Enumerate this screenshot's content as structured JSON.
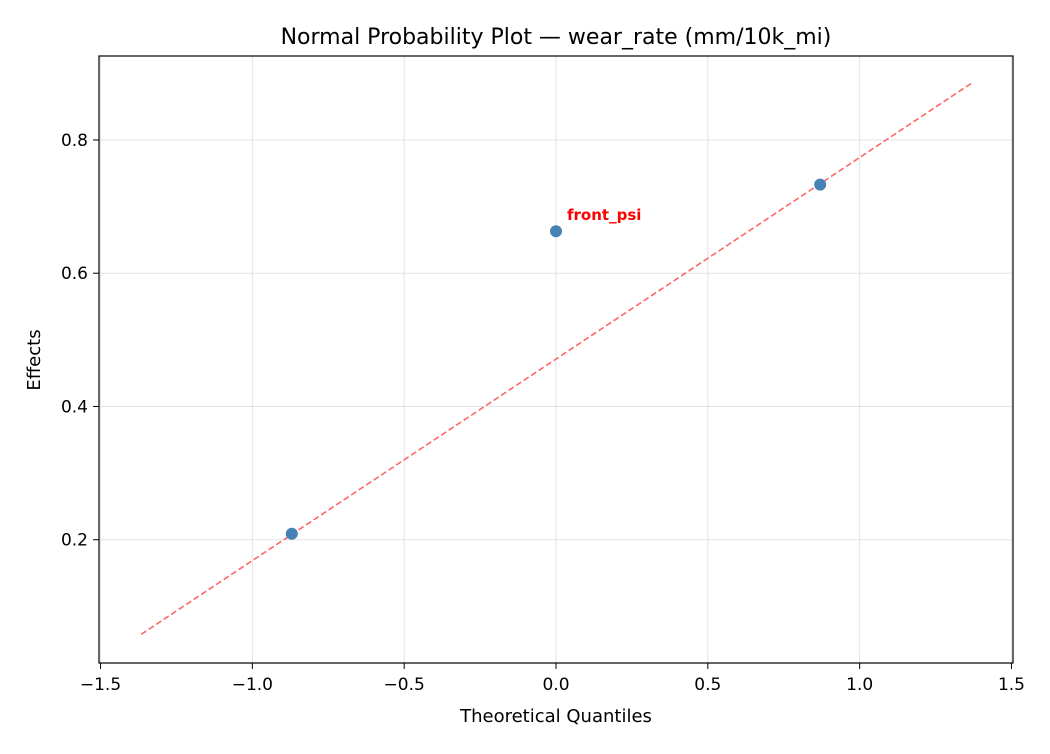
{
  "chart_data": {
    "type": "scatter",
    "title": "Normal Probability Plot — wear_rate (mm/10k_mi)",
    "xlabel": "Theoretical Quantiles",
    "ylabel": "Effects",
    "xlim": [
      -1.505,
      1.505
    ],
    "ylim": [
      0.015,
      0.926
    ],
    "xticks": [
      -1.5,
      -1.0,
      -0.5,
      0.0,
      0.5,
      1.0,
      1.5
    ],
    "xtick_labels": [
      "−1.5",
      "−1.0",
      "−0.5",
      "0.0",
      "0.5",
      "1.0",
      "1.5"
    ],
    "yticks": [
      0.2,
      0.4,
      0.6,
      0.8
    ],
    "ytick_labels": [
      "0.2",
      "0.4",
      "0.6",
      "0.8"
    ],
    "grid": true,
    "points": [
      {
        "x": -0.87,
        "y": 0.209,
        "label": ""
      },
      {
        "x": 0.0,
        "y": 0.663,
        "label": "front_psi"
      },
      {
        "x": 0.87,
        "y": 0.733,
        "label": ""
      }
    ],
    "reference_line": {
      "x": [
        -1.366,
        1.368
      ],
      "y": [
        0.058,
        0.885
      ],
      "style": "dashed"
    },
    "colors": {
      "points": "#4682b4",
      "line": "#ff6666",
      "annotation": "#ff0000"
    }
  }
}
